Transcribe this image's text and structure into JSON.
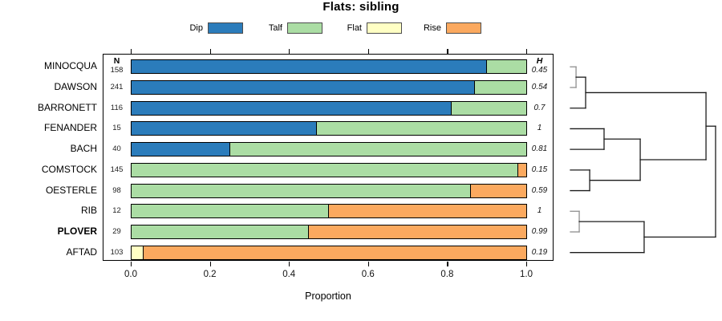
{
  "title": "Flats: sibling",
  "xlabel": "Proportion",
  "n_header": "N",
  "h_header": "H",
  "x_ticks": [
    "0.0",
    "0.2",
    "0.4",
    "0.6",
    "0.8",
    "1.0"
  ],
  "legend": [
    {
      "label": "Dip",
      "color": "#2B7CBB"
    },
    {
      "label": "Talf",
      "color": "#ABDDA4"
    },
    {
      "label": "Flat",
      "color": "#FFFFC4"
    },
    {
      "label": "Rise",
      "color": "#FBA95F"
    }
  ],
  "chart_data": {
    "type": "bar",
    "subtype": "stacked-horizontal-proportion",
    "title": "Flats: sibling",
    "xlabel": "Proportion",
    "xlim": [
      0,
      1
    ],
    "xticks": [
      0,
      0.2,
      0.4,
      0.6,
      0.8,
      1.0
    ],
    "legend_position": "top",
    "segments": [
      "Dip",
      "Talf",
      "Flat",
      "Rise"
    ],
    "rows": [
      {
        "label": "MINOCQUA",
        "n": 158,
        "h": "0.45",
        "bold": false,
        "parts": [
          [
            "Dip",
            0.9
          ],
          [
            "Talf",
            0.1
          ]
        ]
      },
      {
        "label": "DAWSON",
        "n": 241,
        "h": "0.54",
        "bold": false,
        "parts": [
          [
            "Dip",
            0.87
          ],
          [
            "Talf",
            0.13
          ]
        ]
      },
      {
        "label": "BARRONETT",
        "n": 116,
        "h": "0.7",
        "bold": false,
        "parts": [
          [
            "Dip",
            0.81
          ],
          [
            "Talf",
            0.19
          ]
        ]
      },
      {
        "label": "FENANDER",
        "n": 15,
        "h": "1",
        "bold": false,
        "parts": [
          [
            "Dip",
            0.47
          ],
          [
            "Talf",
            0.53
          ]
        ]
      },
      {
        "label": "BACH",
        "n": 40,
        "h": "0.81",
        "bold": false,
        "parts": [
          [
            "Dip",
            0.25
          ],
          [
            "Talf",
            0.75
          ]
        ]
      },
      {
        "label": "COMSTOCK",
        "n": 145,
        "h": "0.15",
        "bold": false,
        "parts": [
          [
            "Talf",
            0.98
          ],
          [
            "Rise",
            0.02
          ]
        ]
      },
      {
        "label": "OESTERLE",
        "n": 98,
        "h": "0.59",
        "bold": false,
        "parts": [
          [
            "Talf",
            0.86
          ],
          [
            "Rise",
            0.14
          ]
        ]
      },
      {
        "label": "RIB",
        "n": 12,
        "h": "1",
        "bold": false,
        "parts": [
          [
            "Talf",
            0.5
          ],
          [
            "Rise",
            0.5
          ]
        ]
      },
      {
        "label": "PLOVER",
        "n": 29,
        "h": "0.99",
        "bold": true,
        "parts": [
          [
            "Talf",
            0.45
          ],
          [
            "Rise",
            0.55
          ]
        ]
      },
      {
        "label": "AFTAD",
        "n": 103,
        "h": "0.19",
        "bold": false,
        "parts": [
          [
            "Flat",
            0.03
          ],
          [
            "Rise",
            0.97
          ]
        ]
      }
    ]
  },
  "dendrogram": {
    "leaves": [
      "MINOCQUA",
      "DAWSON",
      "BARRONETT",
      "FENANDER",
      "BACH",
      "COMSTOCK",
      "OESTERLE",
      "RIB",
      "PLOVER",
      "AFTAD"
    ],
    "tree": {
      "h": 1.0,
      "c": [
        {
          "h": 0.934,
          "c": [
            {
              "h": 0.105,
              "c": [
                {
                  "h": 0.039,
                  "gray": true,
                  "c": [
                    {
                      "leaf": 0
                    },
                    {
                      "leaf": 1
                    }
                  ]
                },
                {
                  "leaf": 2
                }
              ]
            },
            {
              "h": 0.481,
              "c": [
                {
                  "h": 0.232,
                  "c": [
                    {
                      "leaf": 3
                    },
                    {
                      "leaf": 4
                    }
                  ]
                },
                {
                  "h": 0.133,
                  "c": [
                    {
                      "leaf": 5
                    },
                    {
                      "leaf": 6
                    }
                  ]
                }
              ]
            }
          ]
        },
        {
          "h": 0.508,
          "c": [
            {
              "h": 0.061,
              "gray": true,
              "c": [
                {
                  "leaf": 7
                },
                {
                  "leaf": 8
                }
              ]
            },
            {
              "leaf": 9
            }
          ]
        }
      ]
    }
  }
}
